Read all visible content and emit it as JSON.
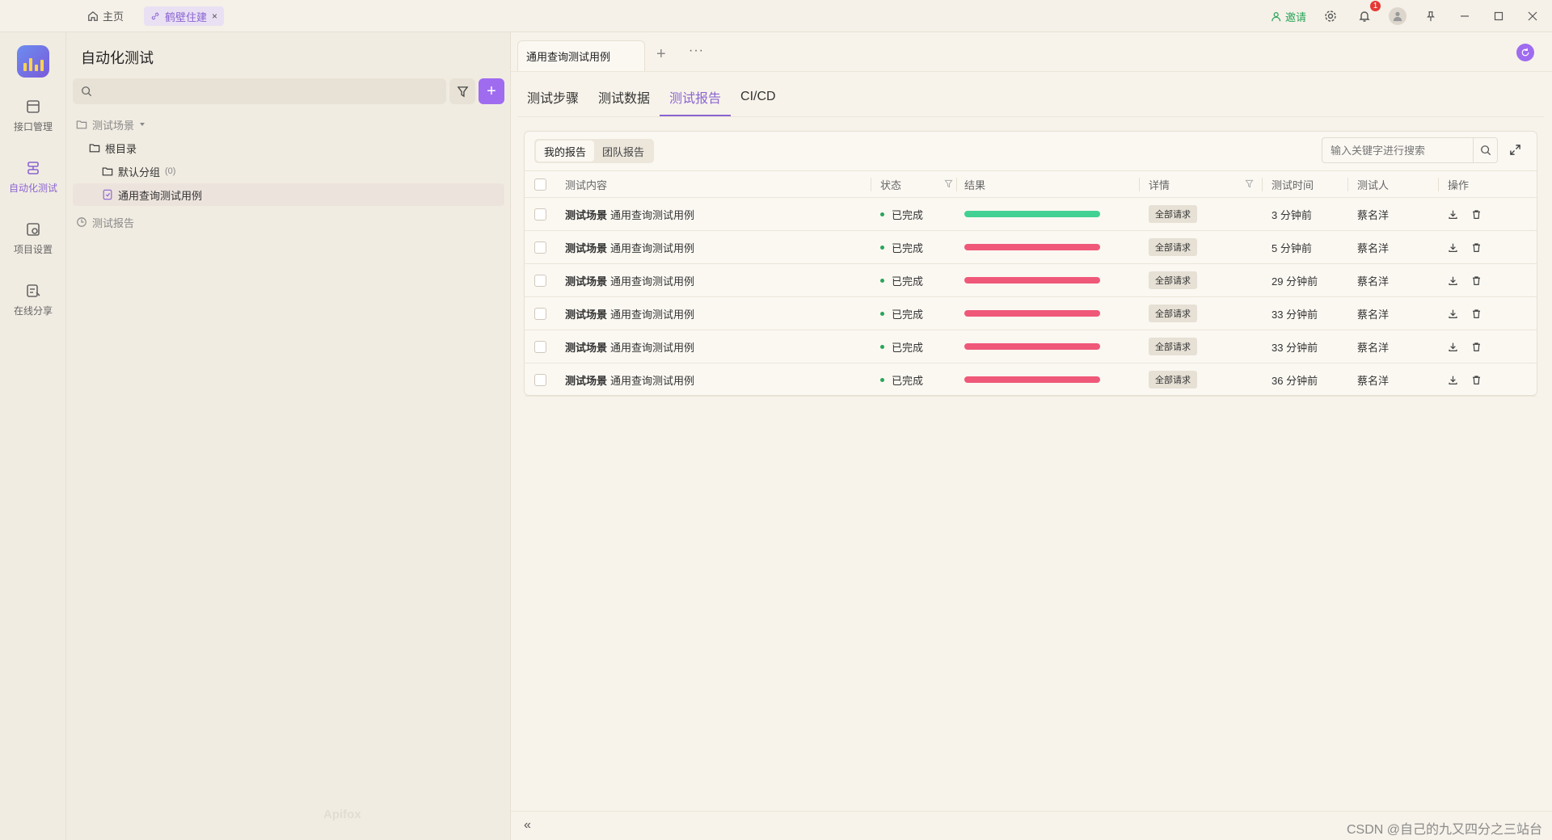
{
  "titlebar": {
    "home_label": "主页",
    "project_tab": "鹤壁住建",
    "close_symbol": "×",
    "invite_label": "邀请",
    "notification_count": "1"
  },
  "leftnav": {
    "items": [
      {
        "label": "接口管理",
        "icon": "api-icon"
      },
      {
        "label": "自动化测试",
        "icon": "automation-icon"
      },
      {
        "label": "项目设置",
        "icon": "settings-icon"
      },
      {
        "label": "在线分享",
        "icon": "share-icon"
      }
    ],
    "accent_color": "#8a63d2"
  },
  "tree_panel": {
    "title": "自动化测试",
    "search_placeholder": "",
    "add_symbol": "+",
    "scenes_label": "测试场景",
    "root_label": "根目录",
    "group_label": "默认分组",
    "group_count": "(0)",
    "case_label": "通用查询测试用例",
    "reports_label": "测试报告",
    "brand_watermark": "Apifox"
  },
  "main": {
    "doc_tab": "通用查询测试用例",
    "add_symbol": "+",
    "more_symbol": "···",
    "sub_tabs": [
      "测试步骤",
      "测试数据",
      "测试报告",
      "CI/CD"
    ],
    "active_sub_tab": 2,
    "report_toggle": [
      "我的报告",
      "团队报告"
    ],
    "keyword_placeholder": "输入关键字进行搜索",
    "columns": [
      "测试内容",
      "状态",
      "结果",
      "详情",
      "测试时间",
      "测试人",
      "操作"
    ],
    "rows": [
      {
        "scene": "测试场景",
        "name": "通用查询测试用例",
        "status": "已完成",
        "result_color": "#41d192",
        "detail": "全部请求",
        "time": "3 分钟前",
        "tester": "蔡名洋"
      },
      {
        "scene": "测试场景",
        "name": "通用查询测试用例",
        "status": "已完成",
        "result_color": "#ef5878",
        "detail": "全部请求",
        "time": "5 分钟前",
        "tester": "蔡名洋"
      },
      {
        "scene": "测试场景",
        "name": "通用查询测试用例",
        "status": "已完成",
        "result_color": "#ef5878",
        "detail": "全部请求",
        "time": "29 分钟前",
        "tester": "蔡名洋"
      },
      {
        "scene": "测试场景",
        "name": "通用查询测试用例",
        "status": "已完成",
        "result_color": "#ef5878",
        "detail": "全部请求",
        "time": "33 分钟前",
        "tester": "蔡名洋"
      },
      {
        "scene": "测试场景",
        "name": "通用查询测试用例",
        "status": "已完成",
        "result_color": "#ef5878",
        "detail": "全部请求",
        "time": "33 分钟前",
        "tester": "蔡名洋"
      },
      {
        "scene": "测试场景",
        "name": "通用查询测试用例",
        "status": "已完成",
        "result_color": "#ef5878",
        "detail": "全部请求",
        "time": "36 分钟前",
        "tester": "蔡名洋"
      }
    ],
    "collapse_symbol": "«",
    "watermark": "CSDN @自己的九又四分之三站台"
  }
}
